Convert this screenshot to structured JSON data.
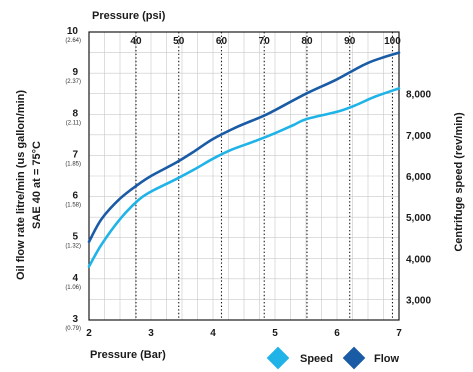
{
  "chart_data": {
    "type": "line",
    "top_axis": {
      "label": "Pressure (psi)",
      "ticks": [
        40,
        50,
        60,
        70,
        80,
        90,
        100
      ]
    },
    "x_axis": {
      "label": "Pressure (Bar)",
      "range": [
        2,
        7
      ],
      "ticks": [
        2,
        3,
        4,
        5,
        6,
        7
      ]
    },
    "left_axis": {
      "label_line1": "Oil flow rate litre/min (us gallon/min)",
      "label_line2": "SAE 40 at = 75°C",
      "range": [
        3,
        10
      ],
      "ticks": [
        {
          "value": 3,
          "label": "3",
          "sub": "(0.79)"
        },
        {
          "value": 4,
          "label": "4",
          "sub": "(1.06)"
        },
        {
          "value": 5,
          "label": "5",
          "sub": "(1.32)"
        },
        {
          "value": 6,
          "label": "6",
          "sub": "(1.58)"
        },
        {
          "value": 7,
          "label": "7",
          "sub": "(1.85)"
        },
        {
          "value": 8,
          "label": "8",
          "sub": "(2.11)"
        },
        {
          "value": 9,
          "label": "9",
          "sub": "(2.37)"
        },
        {
          "value": 10,
          "label": "10",
          "sub": "(2.64)"
        }
      ]
    },
    "right_axis": {
      "label": "Centrifuge speed (rev/min)",
      "range": [
        2500,
        9500
      ],
      "ticks": [
        {
          "value": 3000,
          "label": "3,000"
        },
        {
          "value": 4000,
          "label": "4,000"
        },
        {
          "value": 5000,
          "label": "5,000"
        },
        {
          "value": 6000,
          "label": "6,000"
        },
        {
          "value": 7000,
          "label": "7,000"
        },
        {
          "value": 8000,
          "label": "8,000"
        }
      ]
    },
    "grid": true,
    "legend_position": "bottom-right",
    "series": [
      {
        "name": "Speed",
        "axis": "right",
        "color": "#1fb3e8",
        "x": [
          2.0,
          2.2,
          2.5,
          2.8,
          3.0,
          3.4,
          3.7,
          4.0,
          4.3,
          4.7,
          5.0,
          5.3,
          5.5,
          6.0,
          6.3,
          6.6,
          7.0
        ],
        "y": [
          3800,
          4330,
          4950,
          5420,
          5620,
          5920,
          6160,
          6420,
          6640,
          6860,
          7040,
          7240,
          7380,
          7560,
          7720,
          7920,
          8130
        ]
      },
      {
        "name": "Flow",
        "axis": "left",
        "color": "#1a5ba6",
        "x": [
          2.0,
          2.2,
          2.5,
          2.8,
          3.0,
          3.4,
          3.7,
          4.0,
          4.4,
          4.8,
          5.0,
          5.5,
          6.0,
          6.5,
          7.0
        ],
        "y": [
          4.9,
          5.45,
          5.95,
          6.3,
          6.5,
          6.82,
          7.1,
          7.4,
          7.7,
          7.95,
          8.1,
          8.5,
          8.85,
          9.25,
          9.5
        ]
      }
    ]
  }
}
